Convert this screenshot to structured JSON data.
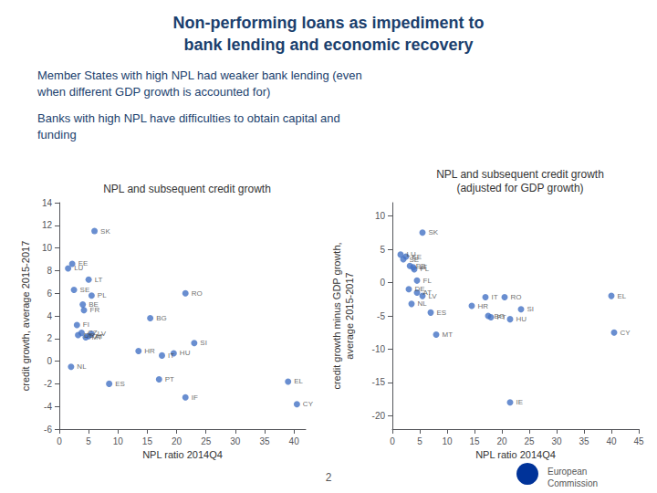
{
  "title": "Non-performing loans as impediment to\nbank lending and economic recovery",
  "annotations": [
    "Member States with high NPL had weaker bank lending (even\nwhen different GDP growth is accounted for)",
    "Banks with high NPL have difficulties to obtain capital and\nfunding",
    "2",
    "European\nCommission"
  ],
  "chart_data": [
    {
      "type": "scatter",
      "title": "NPL and subsequent credit growth",
      "xlabel": "NPL ratio 2014Q4",
      "ylabel": "credit growth, average 2015-2017",
      "xlim": [
        0,
        42
      ],
      "ylim": [
        -6,
        14
      ],
      "xticks": [
        0,
        5,
        10,
        15,
        20,
        25,
        30,
        35,
        40
      ],
      "yticks": [
        -6,
        -4,
        -2,
        0,
        2,
        4,
        6,
        8,
        10,
        12,
        14
      ],
      "grid": false,
      "color": "#4472C4",
      "x": [
        1.5,
        2.2,
        2.5,
        3.0,
        4.0,
        4.2,
        5.0,
        5.5,
        6.0,
        3.2,
        3.8,
        4.5,
        5.0,
        5.5,
        2.0,
        8.5,
        13.5,
        15.5,
        17.5,
        19.5,
        21.5,
        23.0,
        17.0,
        21.5,
        39.0,
        40.5
      ],
      "values": [
        8.2,
        8.6,
        6.3,
        3.2,
        5.0,
        4.5,
        7.2,
        5.8,
        11.5,
        2.3,
        2.5,
        2.1,
        2.2,
        2.4,
        -0.5,
        -2.0,
        0.9,
        3.8,
        0.5,
        0.7,
        6.0,
        1.6,
        -1.6,
        -3.2,
        -1.8,
        -3.8
      ],
      "labels": [
        "LU",
        "EE",
        "SE",
        "FI",
        "BE",
        "FR",
        "LT",
        "PL",
        "SK",
        "DE",
        "CZ",
        "MT",
        "AT",
        "LV",
        "NL",
        "ES",
        "HR",
        "BG",
        "IT",
        "HU",
        "RO",
        "SI",
        "PT",
        "IF",
        "EL",
        "CY"
      ]
    },
    {
      "type": "scatter",
      "title": "NPL and subsequent credit growth\n(adjusted for GDP growth)",
      "xlabel": "NPL ratio 2014Q4",
      "ylabel": "credit growth minus GDP growth,\naverage 2015-2017",
      "xlim": [
        0,
        45
      ],
      "ylim": [
        -22,
        12
      ],
      "xticks": [
        0,
        5,
        10,
        15,
        20,
        25,
        30,
        35,
        40,
        45
      ],
      "yticks": [
        -20,
        -15,
        -10,
        -5,
        0,
        5,
        10
      ],
      "grid": false,
      "color": "#4472C4",
      "x": [
        1.5,
        2.0,
        2.5,
        3.2,
        3.8,
        4.5,
        4.0,
        5.5,
        3.0,
        4.5,
        5.5,
        3.5,
        7.0,
        8.0,
        14.5,
        17.0,
        17.5,
        18.0,
        20.5,
        21.5,
        23.5,
        21.5,
        40.0,
        40.5
      ],
      "values": [
        4.2,
        3.5,
        3.9,
        2.5,
        2.3,
        0.3,
        2.0,
        7.5,
        -1.0,
        -1.5,
        -2.0,
        -3.2,
        -4.5,
        -7.8,
        -3.5,
        -2.2,
        -5.0,
        -5.2,
        -2.2,
        -5.5,
        -4.0,
        -18.0,
        -2.0,
        -7.5
      ],
      "labels": [
        "LU",
        "SE",
        "EE",
        "EE",
        "LT",
        "FL",
        "PL",
        "SK",
        "DE",
        "AT",
        "LV",
        "NL",
        "ES",
        "MT",
        "HR",
        "IT",
        "BG",
        "PT",
        "RO",
        "HU",
        "SI",
        "IE",
        "EL",
        "CY"
      ]
    }
  ]
}
